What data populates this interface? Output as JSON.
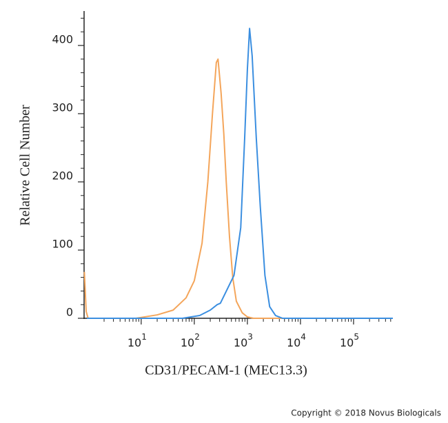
{
  "chart_data": {
    "type": "line",
    "ylabel": "Relative Cell Number",
    "xlabel": "CD31/PECAM-1 (MEC13.3)",
    "annotation": "Copyright © 2018 Novus Biologicals",
    "xscale": "log",
    "xlim": [
      0.84,
      550000
    ],
    "ylim": [
      0,
      450
    ],
    "xticks": [
      {
        "value": 10,
        "label": "10",
        "exponent": "1"
      },
      {
        "value": 100,
        "label": "10",
        "exponent": "2"
      },
      {
        "value": 1000,
        "label": "10",
        "exponent": "3"
      },
      {
        "value": 10000,
        "label": "10",
        "exponent": "4"
      },
      {
        "value": 100000,
        "label": "10",
        "exponent": "5"
      }
    ],
    "yticks": [
      0,
      100,
      200,
      300,
      400
    ],
    "grid": false,
    "series": [
      {
        "color": "#f4a55a",
        "x": [
          0.85,
          0.92,
          1.0,
          8,
          20,
          40,
          70,
          100,
          140,
          180,
          220,
          260,
          280,
          320,
          360,
          400,
          460,
          530,
          620,
          800,
          1000,
          1300,
          550000
        ],
        "values": [
          68,
          10,
          0,
          0,
          5,
          12,
          30,
          55,
          110,
          200,
          300,
          375,
          380,
          330,
          270,
          200,
          120,
          60,
          25,
          8,
          2,
          0,
          0
        ]
      },
      {
        "color": "#3a8ee0",
        "x": [
          0.95,
          60,
          126,
          200,
          270,
          310,
          560,
          750,
          890,
          1000,
          1100,
          1230,
          1470,
          1750,
          2140,
          2630,
          3400,
          4600,
          550000
        ],
        "values": [
          0,
          0,
          4,
          12,
          20,
          22,
          63,
          133,
          265,
          365,
          425,
          385,
          265,
          164,
          63,
          17,
          4,
          0,
          0
        ]
      }
    ]
  }
}
